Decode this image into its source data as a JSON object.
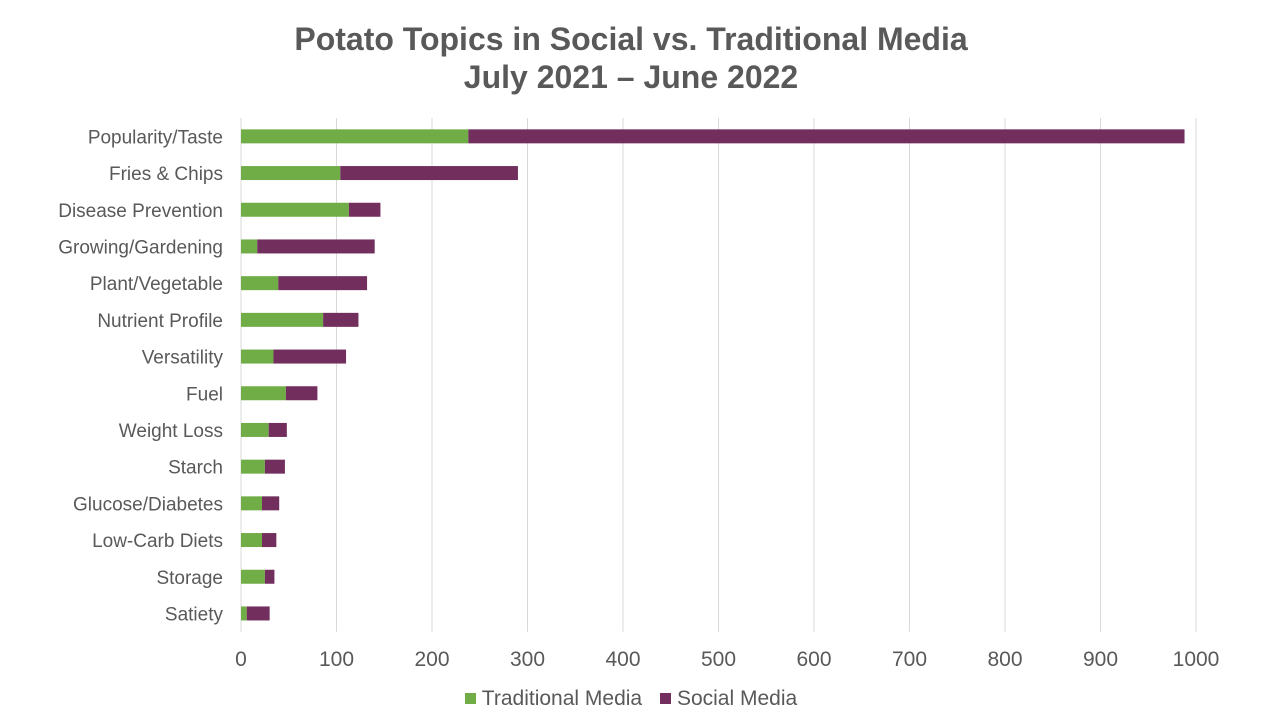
{
  "title_line1": "Potato Topics in Social vs. Traditional Media",
  "title_line2": "July 2021 – June 2022",
  "colors": {
    "traditional": "#70AD47",
    "social": "#722F5E",
    "grid": "#D9D9D9",
    "text": "#595959"
  },
  "chart_data": {
    "type": "bar",
    "orientation": "horizontal",
    "stacked": true,
    "categories": [
      "Popularity/Taste",
      "Fries & Chips",
      "Disease Prevention",
      "Growing/Gardening",
      "Plant/Vegetable",
      "Nutrient Profile",
      "Versatility",
      "Fuel",
      "Weight Loss",
      "Starch",
      "Glucose/Diabetes",
      "Low-Carb Diets",
      "Storage",
      "Satiety"
    ],
    "series": [
      {
        "name": "Traditional Media",
        "values": [
          238,
          104,
          113,
          17,
          39,
          86,
          34,
          47,
          29,
          25,
          22,
          22,
          25,
          6
        ]
      },
      {
        "name": "Social Media",
        "values": [
          750,
          186,
          33,
          123,
          93,
          37,
          76,
          33,
          19,
          21,
          18,
          15,
          10,
          24
        ]
      }
    ],
    "xlim": [
      0,
      1000
    ],
    "xticks": [
      "0",
      "100",
      "200",
      "300",
      "400",
      "500",
      "600",
      "700",
      "800",
      "900",
      "1000"
    ],
    "grid": "vertical",
    "legend_position": "bottom"
  }
}
